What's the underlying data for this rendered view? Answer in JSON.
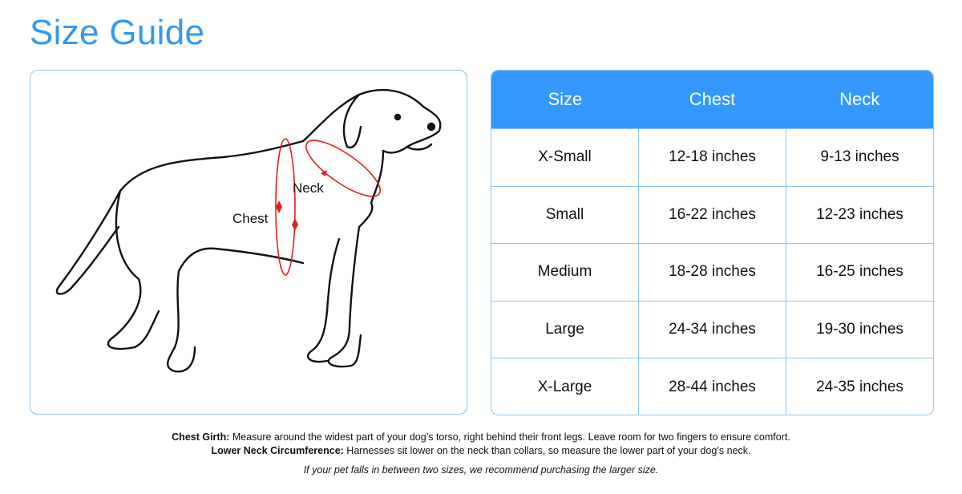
{
  "title": "Size Guide",
  "illustration": {
    "chest_label": "Chest",
    "neck_label": "Neck",
    "measure_color": "#e02020"
  },
  "table": {
    "headers": [
      "Size",
      "Chest",
      "Neck"
    ],
    "rows": [
      [
        "X-Small",
        "12-18 inches",
        "9-13 inches"
      ],
      [
        "Small",
        "16-22 inches",
        "12-23 inches"
      ],
      [
        "Medium",
        "18-28 inches",
        "16-25 inches"
      ],
      [
        "Large",
        "24-34 inches",
        "19-30 inches"
      ],
      [
        "X-Large",
        "28-44 inches",
        "24-35 inches"
      ]
    ],
    "header_color": "#3399ff"
  },
  "notes": {
    "chest_title": "Chest Girth:",
    "chest_text": " Measure around the widest part of your dog’s torso, right behind their front legs. Leave room for two fingers to ensure comfort.",
    "neck_title": "Lower Neck Circumference:",
    "neck_text": " Harnesses sit lower on the neck than collars, so measure the lower part of your dog’s neck.",
    "tip": "If your pet falls in between two sizes, we recommend purchasing the larger size."
  }
}
